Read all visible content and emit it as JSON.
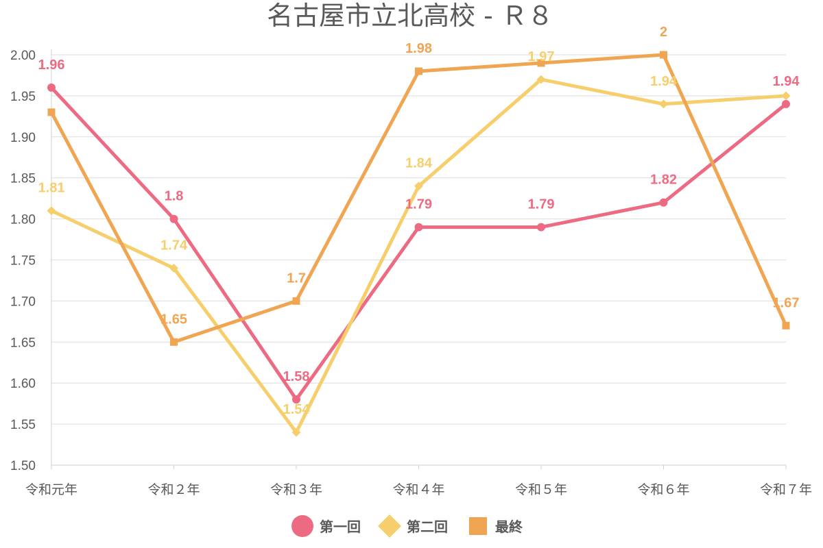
{
  "chart_data": {
    "type": "line",
    "title": "名古屋市立北高校 - Ｒ８",
    "categories": [
      "令和元年",
      "令和２年",
      "令和３年",
      "令和４年",
      "令和５年",
      "令和６年",
      "令和７年"
    ],
    "ylim": [
      1.5,
      2.0
    ],
    "yticks": [
      "1.50",
      "1.55",
      "1.60",
      "1.65",
      "1.70",
      "1.75",
      "1.80",
      "1.85",
      "1.90",
      "1.95",
      "2.00"
    ],
    "grid": true,
    "legend_position": "bottom",
    "series": [
      {
        "name": "第一回",
        "color": "#ec6b82",
        "marker": "circle",
        "values": [
          1.96,
          1.8,
          1.58,
          1.79,
          1.79,
          1.82,
          1.94
        ],
        "labels": [
          "1.96",
          "1.8",
          "1.58",
          "1.79",
          "1.79",
          "1.82",
          "1.94"
        ]
      },
      {
        "name": "第二回",
        "color": "#f6cf6c",
        "marker": "diamond",
        "values": [
          1.81,
          1.74,
          1.54,
          1.84,
          1.97,
          1.94,
          1.95
        ],
        "labels": [
          "1.81",
          "1.74",
          "1.54",
          "1.84",
          "1.97",
          "1.94",
          ""
        ]
      },
      {
        "name": "最終",
        "color": "#f0a552",
        "marker": "square",
        "values": [
          1.93,
          1.65,
          1.7,
          1.98,
          1.99,
          2.0,
          1.67
        ],
        "labels": [
          "",
          "1.65",
          "1.7",
          "1.98",
          "",
          "2",
          "1.67"
        ]
      }
    ]
  }
}
